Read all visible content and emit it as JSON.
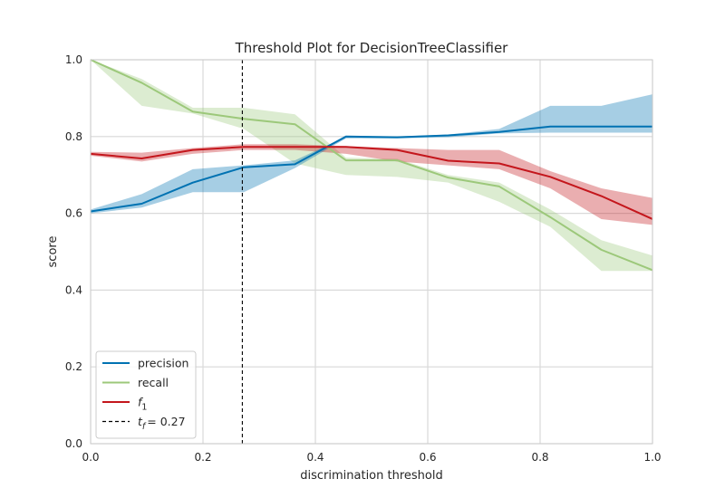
{
  "chart_data": {
    "type": "line",
    "title": "Threshold Plot for DecisionTreeClassifier",
    "xlabel": "discrimination threshold",
    "ylabel": "score",
    "xlim": [
      0,
      1
    ],
    "ylim": [
      0,
      1
    ],
    "xticks": [
      "0.0",
      "0.2",
      "0.4",
      "0.6",
      "0.8",
      "1.0"
    ],
    "yticks": [
      "0.0",
      "0.2",
      "0.4",
      "0.6",
      "0.8",
      "1.0"
    ],
    "grid": true,
    "legend_position": "lower-left",
    "x": [
      0.0,
      0.0909,
      0.1818,
      0.2727,
      0.3636,
      0.4545,
      0.5454,
      0.6363,
      0.7272,
      0.8181,
      0.909,
      1.0
    ],
    "series": [
      {
        "name": "precision",
        "color": "#0072b2",
        "values": [
          0.605,
          0.625,
          0.68,
          0.72,
          0.728,
          0.8,
          0.798,
          0.803,
          0.812,
          0.826,
          0.826,
          0.826
        ],
        "lower": [
          0.6,
          0.615,
          0.655,
          0.655,
          0.718,
          0.795,
          0.795,
          0.798,
          0.808,
          0.81,
          0.81,
          0.81
        ],
        "upper": [
          0.61,
          0.65,
          0.715,
          0.725,
          0.738,
          0.8,
          0.8,
          0.805,
          0.82,
          0.88,
          0.88,
          0.91
        ]
      },
      {
        "name": "recall",
        "color": "#9cc87a",
        "values": [
          1.0,
          0.94,
          0.865,
          0.846,
          0.832,
          0.738,
          0.738,
          0.693,
          0.67,
          0.59,
          0.505,
          0.452
        ],
        "lower": [
          1.0,
          0.88,
          0.86,
          0.82,
          0.73,
          0.7,
          0.695,
          0.68,
          0.63,
          0.565,
          0.45,
          0.45
        ],
        "upper": [
          1.0,
          0.95,
          0.875,
          0.875,
          0.858,
          0.745,
          0.742,
          0.7,
          0.68,
          0.61,
          0.53,
          0.49
        ]
      },
      {
        "name": "f1",
        "color": "#c4161c",
        "values": [
          0.755,
          0.743,
          0.765,
          0.773,
          0.773,
          0.773,
          0.765,
          0.737,
          0.73,
          0.695,
          0.645,
          0.585
        ],
        "lower": [
          0.75,
          0.735,
          0.755,
          0.765,
          0.765,
          0.755,
          0.735,
          0.725,
          0.715,
          0.665,
          0.585,
          0.57
        ],
        "upper": [
          0.76,
          0.758,
          0.77,
          0.78,
          0.78,
          0.775,
          0.77,
          0.765,
          0.765,
          0.71,
          0.665,
          0.64
        ]
      }
    ],
    "threshold": {
      "value": 0.27,
      "label": "= 0.27"
    },
    "legend": {
      "entries": [
        {
          "label": "precision",
          "type": "line",
          "color": "#0072b2"
        },
        {
          "label": "recall",
          "type": "line",
          "color": "#9cc87a"
        },
        {
          "label": "f",
          "sub": "1",
          "type": "line",
          "color": "#c4161c"
        },
        {
          "label": "t",
          "sub": "f",
          "suffix": "= 0.27",
          "type": "dashed",
          "color": "#000000"
        }
      ]
    }
  }
}
